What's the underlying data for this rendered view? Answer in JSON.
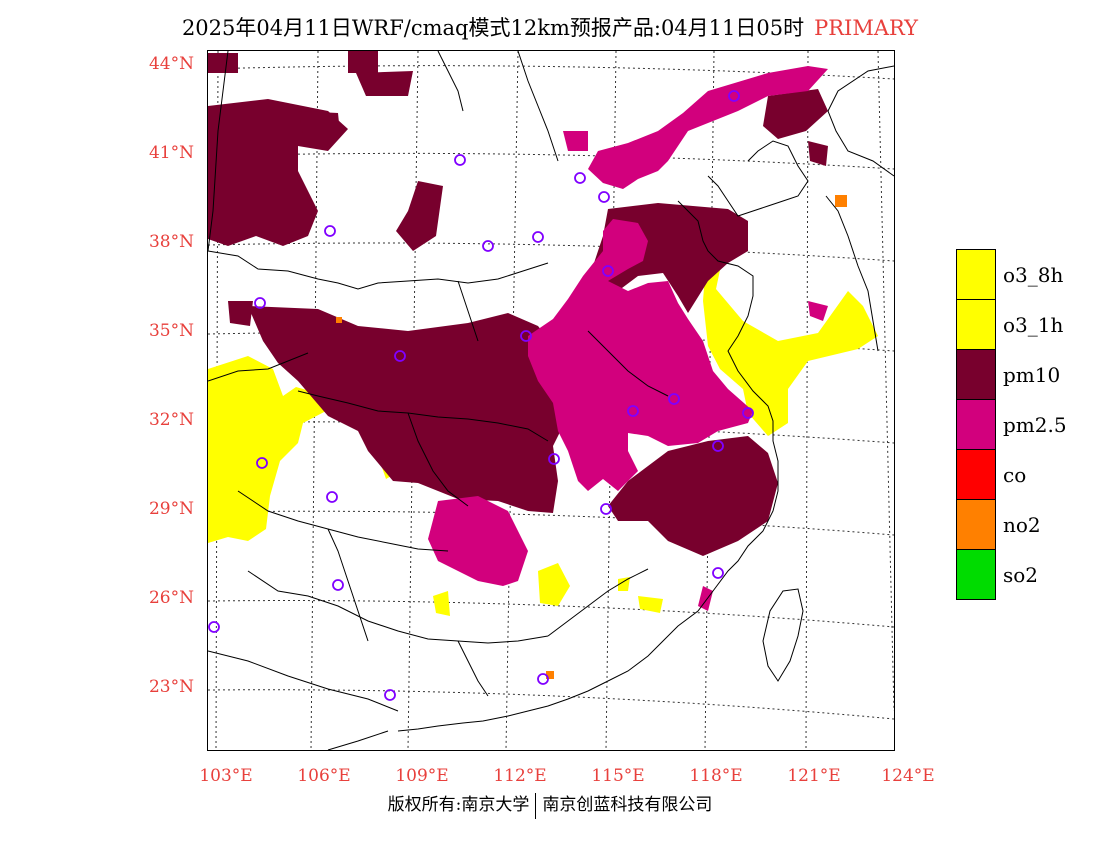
{
  "header": {
    "title": "2025年04月11日WRF/cmaq模式12km预报产品:04月11日05时",
    "tag": "PRIMARY"
  },
  "axes": {
    "lat_labels": [
      "44°N",
      "41°N",
      "38°N",
      "35°N",
      "32°N",
      "29°N",
      "26°N",
      "23°N"
    ],
    "lon_labels": [
      "103°E",
      "106°E",
      "109°E",
      "112°E",
      "115°E",
      "118°E",
      "121°E",
      "124°E"
    ]
  },
  "legend": {
    "items": [
      {
        "label": "o3_8h",
        "color": "#ffff00"
      },
      {
        "label": "o3_1h",
        "color": "#ffff00"
      },
      {
        "label": "pm10",
        "color": "#78002d"
      },
      {
        "label": "pm2.5",
        "color": "#d2007d"
      },
      {
        "label": "co",
        "color": "#ff0000"
      },
      {
        "label": "no2",
        "color": "#ff8000"
      },
      {
        "label": "so2",
        "color": "#00dc00"
      }
    ]
  },
  "footer": {
    "copyright": "版权所有:南京大学",
    "company": "南京创蓝科技有限公司"
  },
  "colors": {
    "pm10": "#78002d",
    "pm25": "#d2007d",
    "o3": "#ffff00",
    "no2": "#ff8000",
    "station": "#8000ff",
    "label": "#e8403c"
  }
}
